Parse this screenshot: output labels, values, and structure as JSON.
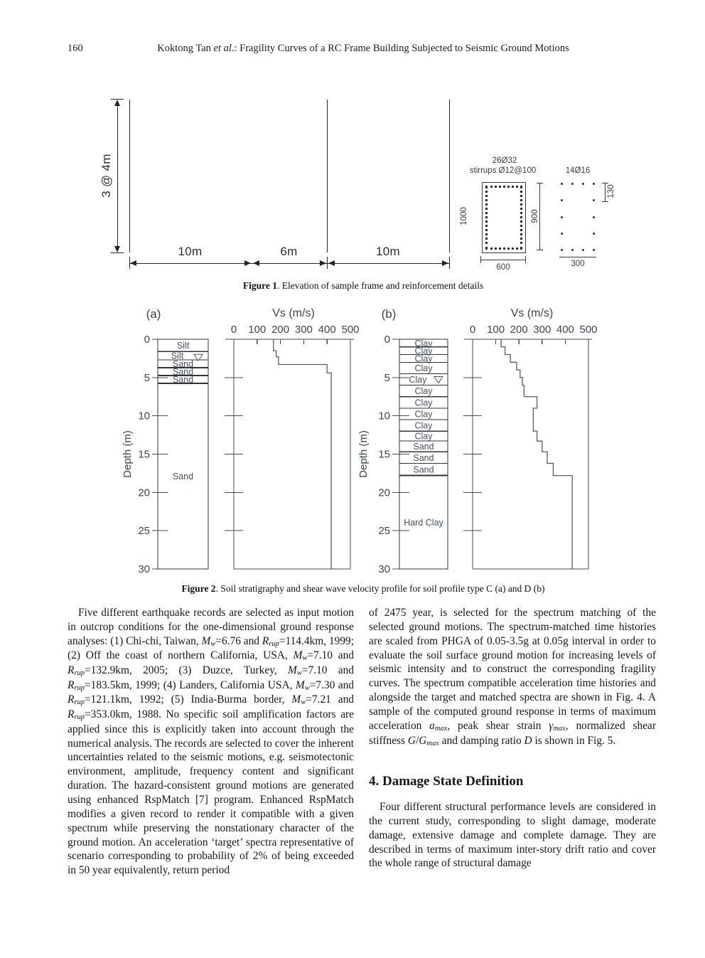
{
  "page": {
    "number": "160",
    "running_title_runs": [
      {
        "x": "Koktong Tan "
      },
      {
        "x": "et al",
        "s": "i"
      },
      {
        "x": ".:   Fragility Curves of a RC Frame Building Subjected to Seismic Ground Motions"
      }
    ]
  },
  "figure1": {
    "caption_runs": [
      {
        "x": "Figure 1",
        "s": "b"
      },
      {
        "x": ".   Elevation of sample frame and reinforcement details"
      }
    ],
    "height_dim": "3 @ 4m",
    "span_dims": [
      "10m",
      "6m",
      "10m"
    ],
    "column_section": {
      "rebar_label": "26Ø32",
      "stirrup_label": "stirrups Ø12@100",
      "height_dim": "1000",
      "width_dim": "600",
      "bars": 26
    },
    "beam_section": {
      "rebar_label": "14Ø16",
      "height_dim": "900",
      "top_dim": "130",
      "width_dim": "300",
      "dot_rows": [
        4,
        2,
        2,
        2,
        4
      ]
    }
  },
  "figure2": {
    "caption_runs": [
      {
        "x": "Figure 2",
        "s": "b"
      },
      {
        "x": ".   Soil stratigraphy and shear wave velocity profile for soil profile type C (a) and D (b)"
      }
    ]
  },
  "chart_data": [
    {
      "type": "line",
      "panel_label": "(a)",
      "title": "Vs (m/s)",
      "xlabel": "Vs (m/s)",
      "ylabel": "Depth (m)",
      "xlim": [
        0,
        500
      ],
      "ylim": [
        0,
        30
      ],
      "xticks": [
        0,
        100,
        200,
        300,
        400,
        500
      ],
      "yticks": [
        0,
        5,
        10,
        15,
        20,
        25,
        30
      ],
      "soil_layers": [
        {
          "label": "Silt",
          "from": 0,
          "to": 1.6
        },
        {
          "label": "Silt",
          "from": 1.6,
          "to": 2.7,
          "water_table": true
        },
        {
          "label": "Sand",
          "from": 2.7,
          "to": 3.7,
          "heavy": true
        },
        {
          "label": "Sand",
          "from": 3.7,
          "to": 4.75,
          "heavy": true
        },
        {
          "label": "Sand",
          "from": 4.75,
          "to": 5.75,
          "heavy": true
        },
        {
          "label": "Sand",
          "from": 5.75,
          "to": 30
        }
      ],
      "vs_profile": [
        {
          "from": 0,
          "to": 1.5,
          "vs": 170
        },
        {
          "from": 1.5,
          "to": 2.3,
          "vs": 182
        },
        {
          "from": 2.3,
          "to": 3.3,
          "vs": 192
        },
        {
          "from": 3.3,
          "to": 4.4,
          "vs": 400
        },
        {
          "from": 4.4,
          "to": 30,
          "vs": 418
        }
      ]
    },
    {
      "type": "line",
      "panel_label": "(b)",
      "title": "Vs (m/s)",
      "xlabel": "Vs (m/s)",
      "ylabel": "Depth (m)",
      "xlim": [
        0,
        500
      ],
      "ylim": [
        0,
        30
      ],
      "xticks": [
        0,
        100,
        200,
        300,
        400,
        500
      ],
      "yticks": [
        0,
        5,
        10,
        15,
        20,
        25,
        30
      ],
      "soil_layers": [
        {
          "label": "Clay",
          "from": 0,
          "to": 1
        },
        {
          "label": "Clay",
          "from": 1,
          "to": 2
        },
        {
          "label": "Clay",
          "from": 2,
          "to": 3
        },
        {
          "label": "Clay",
          "from": 3,
          "to": 4.5
        },
        {
          "label": "Clay",
          "from": 4.5,
          "to": 6,
          "water_table": true
        },
        {
          "label": "Clay",
          "from": 6,
          "to": 7.5
        },
        {
          "label": "Clay",
          "from": 7.5,
          "to": 9
        },
        {
          "label": "Clay",
          "from": 9,
          "to": 10.5
        },
        {
          "label": "Clay",
          "from": 10.5,
          "to": 12
        },
        {
          "label": "Clay",
          "from": 12,
          "to": 13.3
        },
        {
          "label": "Sand",
          "from": 13.3,
          "to": 14.7
        },
        {
          "label": "Sand",
          "from": 14.7,
          "to": 16.2
        },
        {
          "label": "Sand",
          "from": 16.2,
          "to": 17.8,
          "heavy": true
        },
        {
          "label": "Hard Clay",
          "from": 17.8,
          "to": 30
        }
      ],
      "vs_profile": [
        {
          "from": 0,
          "to": 1,
          "vs": 123
        },
        {
          "from": 1,
          "to": 2,
          "vs": 140
        },
        {
          "from": 2,
          "to": 3,
          "vs": 163
        },
        {
          "from": 3,
          "to": 4,
          "vs": 190
        },
        {
          "from": 4,
          "to": 5,
          "vs": 205
        },
        {
          "from": 5,
          "to": 6,
          "vs": 215
        },
        {
          "from": 6,
          "to": 7.5,
          "vs": 222
        },
        {
          "from": 7.5,
          "to": 9,
          "vs": 278
        },
        {
          "from": 9,
          "to": 12,
          "vs": 262
        },
        {
          "from": 12,
          "to": 13.3,
          "vs": 278
        },
        {
          "from": 13.3,
          "to": 14.7,
          "vs": 300
        },
        {
          "from": 14.7,
          "to": 16.2,
          "vs": 322
        },
        {
          "from": 16.2,
          "to": 17.8,
          "vs": 348
        },
        {
          "from": 17.8,
          "to": 30,
          "vs": 430
        }
      ]
    }
  ],
  "body": {
    "left_paragraph_runs": [
      {
        "x": "Five different earthquake records are selected as input motion in outcrop conditions for the one-dimensional ground response analyses: (1) Chi-chi, Taiwan, "
      },
      {
        "x": "M",
        "s": "i"
      },
      {
        "x": "w",
        "s": "isub"
      },
      {
        "x": "=6.76 and "
      },
      {
        "x": "R",
        "s": "i"
      },
      {
        "x": "rup",
        "s": "isub"
      },
      {
        "x": "=114.4km, 1999; (2) Off the coast of northern California, USA, "
      },
      {
        "x": "M",
        "s": "i"
      },
      {
        "x": "w",
        "s": "isub"
      },
      {
        "x": "=7.10 and "
      },
      {
        "x": "R",
        "s": "i"
      },
      {
        "x": "rup",
        "s": "isub"
      },
      {
        "x": "=132.9km, 2005; (3) Duzce, Turkey, "
      },
      {
        "x": "M",
        "s": "i"
      },
      {
        "x": "w",
        "s": "isub"
      },
      {
        "x": "=7.10 and "
      },
      {
        "x": "R",
        "s": "i"
      },
      {
        "x": "rup",
        "s": "isub"
      },
      {
        "x": "=183.5km, 1999; (4) Landers, California USA, "
      },
      {
        "x": "M",
        "s": "i"
      },
      {
        "x": "w",
        "s": "isub"
      },
      {
        "x": "=7.30 and "
      },
      {
        "x": "R",
        "s": "i"
      },
      {
        "x": "rup",
        "s": "isub"
      },
      {
        "x": "=121.1km, 1992; (5) India-Burma border, "
      },
      {
        "x": "M",
        "s": "i"
      },
      {
        "x": "w",
        "s": "isub"
      },
      {
        "x": "=7.21 and "
      },
      {
        "x": "R",
        "s": "i"
      },
      {
        "x": "rup",
        "s": "isub"
      },
      {
        "x": "=353.0km, 1988. No specific soil amplification factors are applied since this is explicitly taken into account through the numerical analysis. The records are selected to cover the inherent uncertainties related to the seismic motions, e.g. seismotectonic environment, amplitude, frequency content and significant duration. The hazard-consistent ground motions are generated using enhanced RspMatch [7] program. Enhanced RspMatch modifies a given record to render it compatible with a given spectrum while preserving the nonstationary character of the ground motion. An acceleration ‘target’ spectra representative of scenario corresponding to probability of 2% of being exceeded in 50 year equivalently, return period"
      }
    ],
    "right_paragraph_runs": [
      {
        "x": "of 2475 year, is selected for the spectrum matching of the selected ground motions. The spectrum-matched time histories are scaled from PHGA of 0.05-3.5g at 0.05g interval in order to evaluate the soil surface ground motion for increasing levels of seismic intensity and to construct the corresponding fragility curves. The spectrum compatible acceleration time histories and alongside the target and matched spectra are shown in Fig. 4. A sample of the computed ground response in terms of maximum acceleration "
      },
      {
        "x": "a",
        "s": "i"
      },
      {
        "x": "max",
        "s": "isub"
      },
      {
        "x": ", peak shear strain "
      },
      {
        "x": "γ",
        "s": "i"
      },
      {
        "x": "max",
        "s": "isub"
      },
      {
        "x": ", normalized shear stiffness "
      },
      {
        "x": "G",
        "s": "i"
      },
      {
        "x": "/"
      },
      {
        "x": "G",
        "s": "i"
      },
      {
        "x": "max",
        "s": "isub"
      },
      {
        "x": " and damping ratio "
      },
      {
        "x": "D",
        "s": "i"
      },
      {
        "x": " is shown in Fig. 5."
      }
    ],
    "section_heading": "4. Damage State Definition",
    "right_paragraph2": "Four different structural performance levels are considered in the current study, corresponding to slight damage, moderate damage, extensive damage and complete damage. They are described in terms of maximum inter-story drift ratio and cover the whole range of structural damage"
  },
  "colors": {
    "page_bg": "#ffffff",
    "text": "#1c1c1c",
    "figure_label_text": "#46525f",
    "axis_line": "#4a4a4a",
    "profile_line": "#5b5b5b"
  }
}
